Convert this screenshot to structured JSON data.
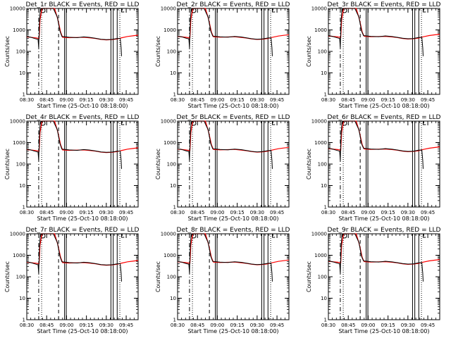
{
  "figure": {
    "background": "#ffffff",
    "axis_color": "#000000",
    "events_color": "#000000",
    "lld_color": "#ff0000"
  },
  "chart_data": [
    {
      "type": "line",
      "title": "Det_1r BLACK = Events, RED = LLD",
      "xlabel": "Start Time (25-Oct-10 08:18:00)",
      "ylabel": "Counts/sec",
      "yscale": "log",
      "ylim": [
        1,
        10000
      ],
      "x_tick_labels": [
        "08:30",
        "08:45",
        "09:00",
        "09:15",
        "09:30",
        "09:45"
      ],
      "y_tick_labels": [
        "1",
        "10",
        "100",
        "1000",
        "10000"
      ],
      "series": [
        {
          "name": "Events",
          "color": "#000000"
        },
        {
          "name": "LLD",
          "color": "#ff0000"
        }
      ]
    },
    {
      "type": "line",
      "title": "Det_2r BLACK = Events, RED = LLD",
      "xlabel": "Start Time (25-Oct-10 08:18:00)",
      "ylabel": "Counts/sec",
      "yscale": "log",
      "ylim": [
        1,
        10000
      ],
      "x_tick_labels": [
        "08:30",
        "08:45",
        "09:00",
        "09:15",
        "09:30",
        "09:45"
      ],
      "y_tick_labels": [
        "1",
        "10",
        "100",
        "1000",
        "10000"
      ],
      "series": [
        {
          "name": "Events",
          "color": "#000000"
        },
        {
          "name": "LLD",
          "color": "#ff0000"
        }
      ]
    },
    {
      "type": "line",
      "title": "Det_3r BLACK = Events, RED = LLD",
      "xlabel": "Start Time (25-Oct-10 08:18:00)",
      "ylabel": "Counts/sec",
      "yscale": "log",
      "ylim": [
        1,
        10000
      ],
      "x_tick_labels": [
        "08:30",
        "08:45",
        "09:00",
        "09:15",
        "09:30",
        "09:45"
      ],
      "y_tick_labels": [
        "1",
        "10",
        "100",
        "1000",
        "10000"
      ],
      "series": [
        {
          "name": "Events",
          "color": "#000000"
        },
        {
          "name": "LLD",
          "color": "#ff0000"
        }
      ]
    },
    {
      "type": "line",
      "title": "Det_4r BLACK = Events, RED = LLD",
      "xlabel": "Start Time (25-Oct-10 08:18:00)",
      "ylabel": "Counts/sec",
      "yscale": "log",
      "ylim": [
        1,
        10000
      ],
      "x_tick_labels": [
        "08:30",
        "08:45",
        "09:00",
        "09:15",
        "09:30",
        "09:45"
      ],
      "y_tick_labels": [
        "1",
        "10",
        "100",
        "1000",
        "10000"
      ],
      "series": [
        {
          "name": "Events",
          "color": "#000000"
        },
        {
          "name": "LLD",
          "color": "#ff0000"
        }
      ]
    },
    {
      "type": "line",
      "title": "Det_5r BLACK = Events, RED = LLD",
      "xlabel": "Start Time (25-Oct-10 08:18:00)",
      "ylabel": "Counts/sec",
      "yscale": "log",
      "ylim": [
        1,
        10000
      ],
      "x_tick_labels": [
        "08:30",
        "08:45",
        "09:00",
        "09:15",
        "09:30",
        "09:45"
      ],
      "y_tick_labels": [
        "1",
        "10",
        "100",
        "1000",
        "10000"
      ],
      "series": [
        {
          "name": "Events",
          "color": "#000000"
        },
        {
          "name": "LLD",
          "color": "#ff0000"
        }
      ]
    },
    {
      "type": "line",
      "title": "Det_6r BLACK = Events, RED = LLD",
      "xlabel": "Start Time (25-Oct-10 08:18:00)",
      "ylabel": "Counts/sec",
      "yscale": "log",
      "ylim": [
        1,
        10000
      ],
      "x_tick_labels": [
        "08:30",
        "08:45",
        "09:00",
        "09:15",
        "09:30",
        "09:45"
      ],
      "y_tick_labels": [
        "1",
        "10",
        "100",
        "1000",
        "10000"
      ],
      "series": [
        {
          "name": "Events",
          "color": "#000000"
        },
        {
          "name": "LLD",
          "color": "#ff0000"
        }
      ]
    },
    {
      "type": "line",
      "title": "Det_7r BLACK = Events, RED = LLD",
      "xlabel": "Start Time (25-Oct-10 08:18:00)",
      "ylabel": "Counts/sec",
      "yscale": "log",
      "ylim": [
        1,
        10000
      ],
      "x_tick_labels": [
        "08:30",
        "08:45",
        "09:00",
        "09:15",
        "09:30",
        "09:45"
      ],
      "y_tick_labels": [
        "1",
        "10",
        "100",
        "1000",
        "10000"
      ],
      "series": [
        {
          "name": "Events",
          "color": "#000000"
        },
        {
          "name": "LLD",
          "color": "#ff0000"
        }
      ]
    },
    {
      "type": "line",
      "title": "Det_8r BLACK = Events, RED = LLD",
      "xlabel": "Start Time (25-Oct-10 08:18:00)",
      "ylabel": "Counts/sec",
      "yscale": "log",
      "ylim": [
        1,
        10000
      ],
      "x_tick_labels": [
        "08:30",
        "08:45",
        "09:00",
        "09:15",
        "09:30",
        "09:45"
      ],
      "y_tick_labels": [
        "1",
        "10",
        "100",
        "1000",
        "10000"
      ],
      "series": [
        {
          "name": "Events",
          "color": "#000000"
        },
        {
          "name": "LLD",
          "color": "#ff0000"
        }
      ]
    },
    {
      "type": "line",
      "title": "Det_9r BLACK = Events, RED = LLD",
      "xlabel": "Start Time (25-Oct-10 08:18:00)",
      "ylabel": "Counts/sec",
      "yscale": "log",
      "ylim": [
        1,
        10000
      ],
      "x_tick_labels": [
        "08:30",
        "08:45",
        "09:00",
        "09:15",
        "09:30",
        "09:45"
      ],
      "y_tick_labels": [
        "1",
        "10",
        "100",
        "1000",
        "10000"
      ],
      "series": [
        {
          "name": "Events",
          "color": "#000000"
        },
        {
          "name": "LLD",
          "color": "#ff0000"
        }
      ]
    }
  ]
}
